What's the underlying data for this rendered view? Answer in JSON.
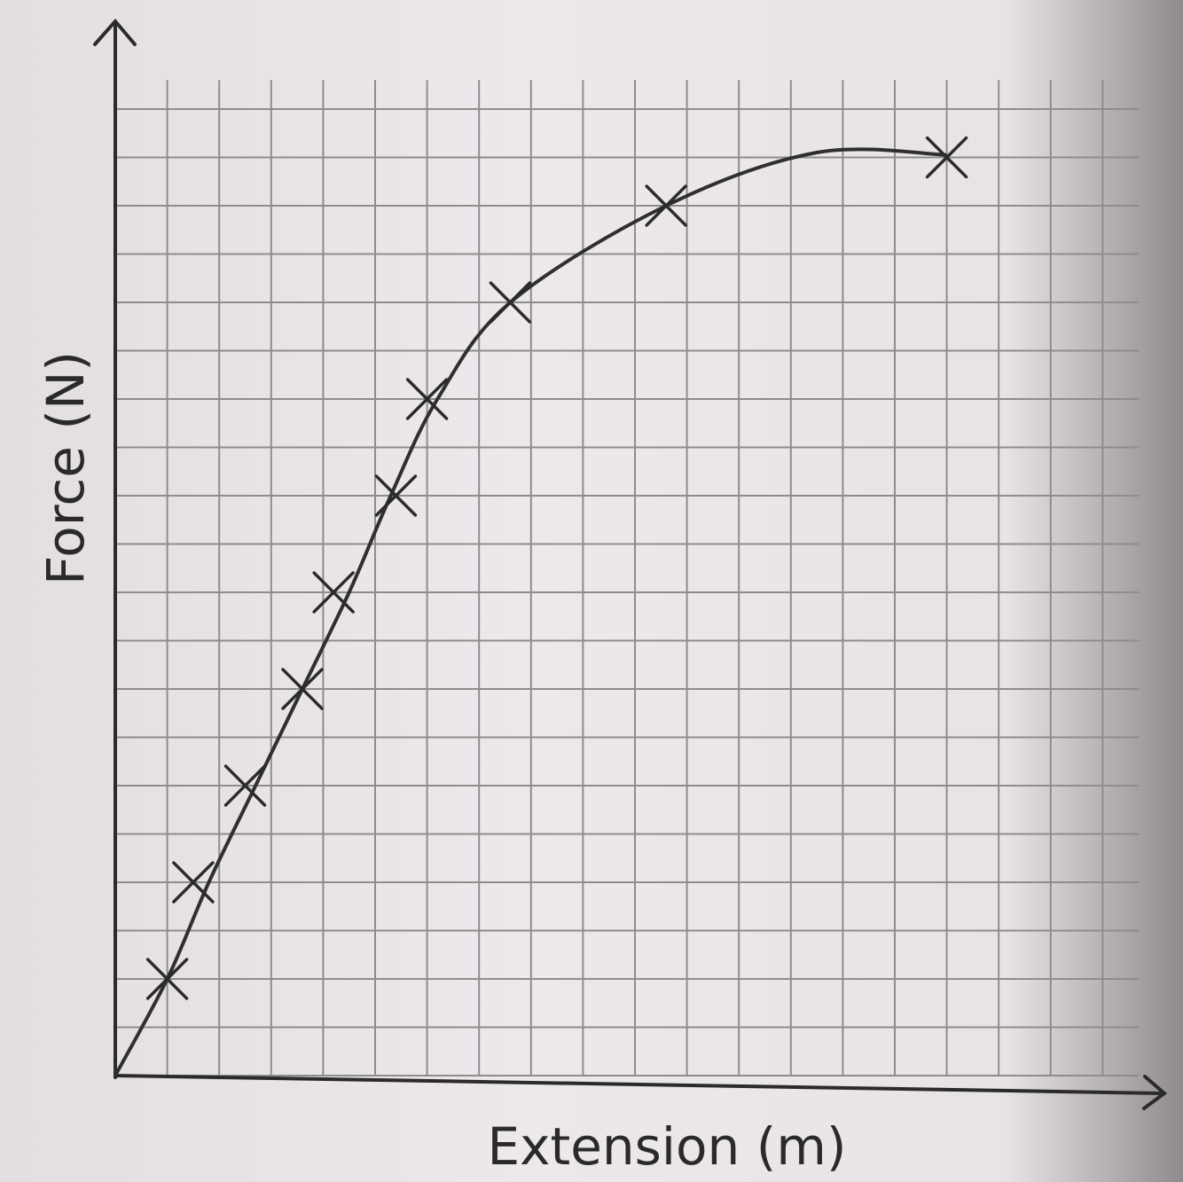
{
  "chart_data": {
    "type": "scatter",
    "title": "",
    "xlabel": "Extension (m)",
    "ylabel": "Force (N)",
    "xlim": [
      0,
      19
    ],
    "ylim": [
      0,
      20
    ],
    "grid": true,
    "x_tick_labels": [],
    "y_tick_labels": [],
    "series": [
      {
        "marker": "x",
        "points": [
          {
            "x": 1.0,
            "y": 2.0
          },
          {
            "x": 1.5,
            "y": 4.0
          },
          {
            "x": 2.5,
            "y": 6.0
          },
          {
            "x": 3.6,
            "y": 8.0
          },
          {
            "x": 4.2,
            "y": 10.0
          },
          {
            "x": 5.4,
            "y": 12.0
          },
          {
            "x": 6.0,
            "y": 14.0
          },
          {
            "x": 7.6,
            "y": 16.0
          },
          {
            "x": 10.6,
            "y": 18.0
          },
          {
            "x": 16.0,
            "y": 19.0
          }
        ]
      }
    ],
    "best_fit": {
      "style": "smooth curve through origin",
      "points": [
        {
          "x": 0,
          "y": 0
        },
        {
          "x": 1.0,
          "y": 2.0
        },
        {
          "x": 1.8,
          "y": 4.0
        },
        {
          "x": 2.7,
          "y": 6.0
        },
        {
          "x": 3.6,
          "y": 8.0
        },
        {
          "x": 4.5,
          "y": 10.0
        },
        {
          "x": 5.3,
          "y": 12.0
        },
        {
          "x": 6.2,
          "y": 14.0
        },
        {
          "x": 7.6,
          "y": 16.0
        },
        {
          "x": 10.6,
          "y": 18.0
        },
        {
          "x": 13.5,
          "y": 19.1
        },
        {
          "x": 16.0,
          "y": 19.05
        }
      ]
    },
    "colors": {
      "ink": "#2a2a2a",
      "grid": "#8e8c8f",
      "paper": "#eae6e9"
    }
  }
}
